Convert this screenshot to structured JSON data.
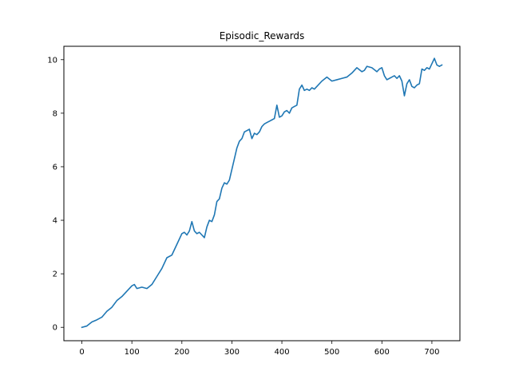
{
  "chart_data": {
    "type": "line",
    "title": "Episodic_Rewards",
    "xlabel": "",
    "ylabel": "",
    "xlim": [
      -36,
      756
    ],
    "ylim": [
      -0.5,
      10.5
    ],
    "xticks": [
      0,
      100,
      200,
      300,
      400,
      500,
      600,
      700
    ],
    "yticks": [
      0,
      2,
      4,
      6,
      8,
      10
    ],
    "xtick_labels": [
      "0",
      "100",
      "200",
      "300",
      "400",
      "500",
      "600",
      "700"
    ],
    "ytick_labels": [
      "0",
      "2",
      "4",
      "6",
      "8",
      "10"
    ],
    "grid": false,
    "legend": null,
    "series": [
      {
        "color": "#1f77b4",
        "x": [
          0,
          10,
          20,
          30,
          40,
          50,
          60,
          70,
          80,
          90,
          100,
          105,
          110,
          120,
          130,
          140,
          150,
          160,
          170,
          180,
          190,
          200,
          205,
          210,
          215,
          220,
          225,
          230,
          235,
          240,
          245,
          250,
          255,
          260,
          265,
          270,
          275,
          280,
          285,
          290,
          295,
          300,
          305,
          310,
          315,
          320,
          325,
          330,
          335,
          340,
          345,
          350,
          355,
          360,
          365,
          370,
          375,
          380,
          385,
          390,
          395,
          400,
          405,
          410,
          415,
          420,
          425,
          430,
          435,
          440,
          445,
          450,
          455,
          460,
          465,
          470,
          480,
          490,
          500,
          510,
          520,
          530,
          540,
          550,
          560,
          565,
          570,
          580,
          590,
          595,
          600,
          605,
          610,
          615,
          620,
          625,
          630,
          635,
          640,
          645,
          650,
          655,
          660,
          665,
          670,
          675,
          680,
          685,
          690,
          695,
          700,
          705,
          710,
          715,
          720
        ],
        "y": [
          0,
          0.05,
          0.2,
          0.28,
          0.38,
          0.6,
          0.75,
          1.0,
          1.15,
          1.35,
          1.55,
          1.6,
          1.45,
          1.5,
          1.45,
          1.6,
          1.9,
          2.2,
          2.6,
          2.7,
          3.1,
          3.5,
          3.55,
          3.45,
          3.6,
          3.95,
          3.6,
          3.5,
          3.55,
          3.45,
          3.35,
          3.75,
          4.0,
          3.95,
          4.2,
          4.7,
          4.8,
          5.2,
          5.4,
          5.35,
          5.5,
          5.9,
          6.3,
          6.7,
          6.95,
          7.05,
          7.3,
          7.35,
          7.4,
          7.05,
          7.25,
          7.2,
          7.3,
          7.5,
          7.6,
          7.65,
          7.7,
          7.75,
          7.8,
          8.3,
          7.85,
          7.9,
          8.05,
          8.1,
          8.0,
          8.2,
          8.25,
          8.3,
          8.9,
          9.05,
          8.85,
          8.9,
          8.85,
          8.95,
          8.9,
          9.0,
          9.2,
          9.35,
          9.2,
          9.25,
          9.3,
          9.35,
          9.5,
          9.7,
          9.55,
          9.6,
          9.75,
          9.7,
          9.55,
          9.65,
          9.7,
          9.4,
          9.25,
          9.3,
          9.35,
          9.4,
          9.3,
          9.4,
          9.2,
          8.65,
          9.1,
          9.25,
          9.0,
          8.95,
          9.05,
          9.1,
          9.65,
          9.6,
          9.7,
          9.65,
          9.85,
          10.05,
          9.8,
          9.75,
          9.8
        ]
      }
    ]
  }
}
